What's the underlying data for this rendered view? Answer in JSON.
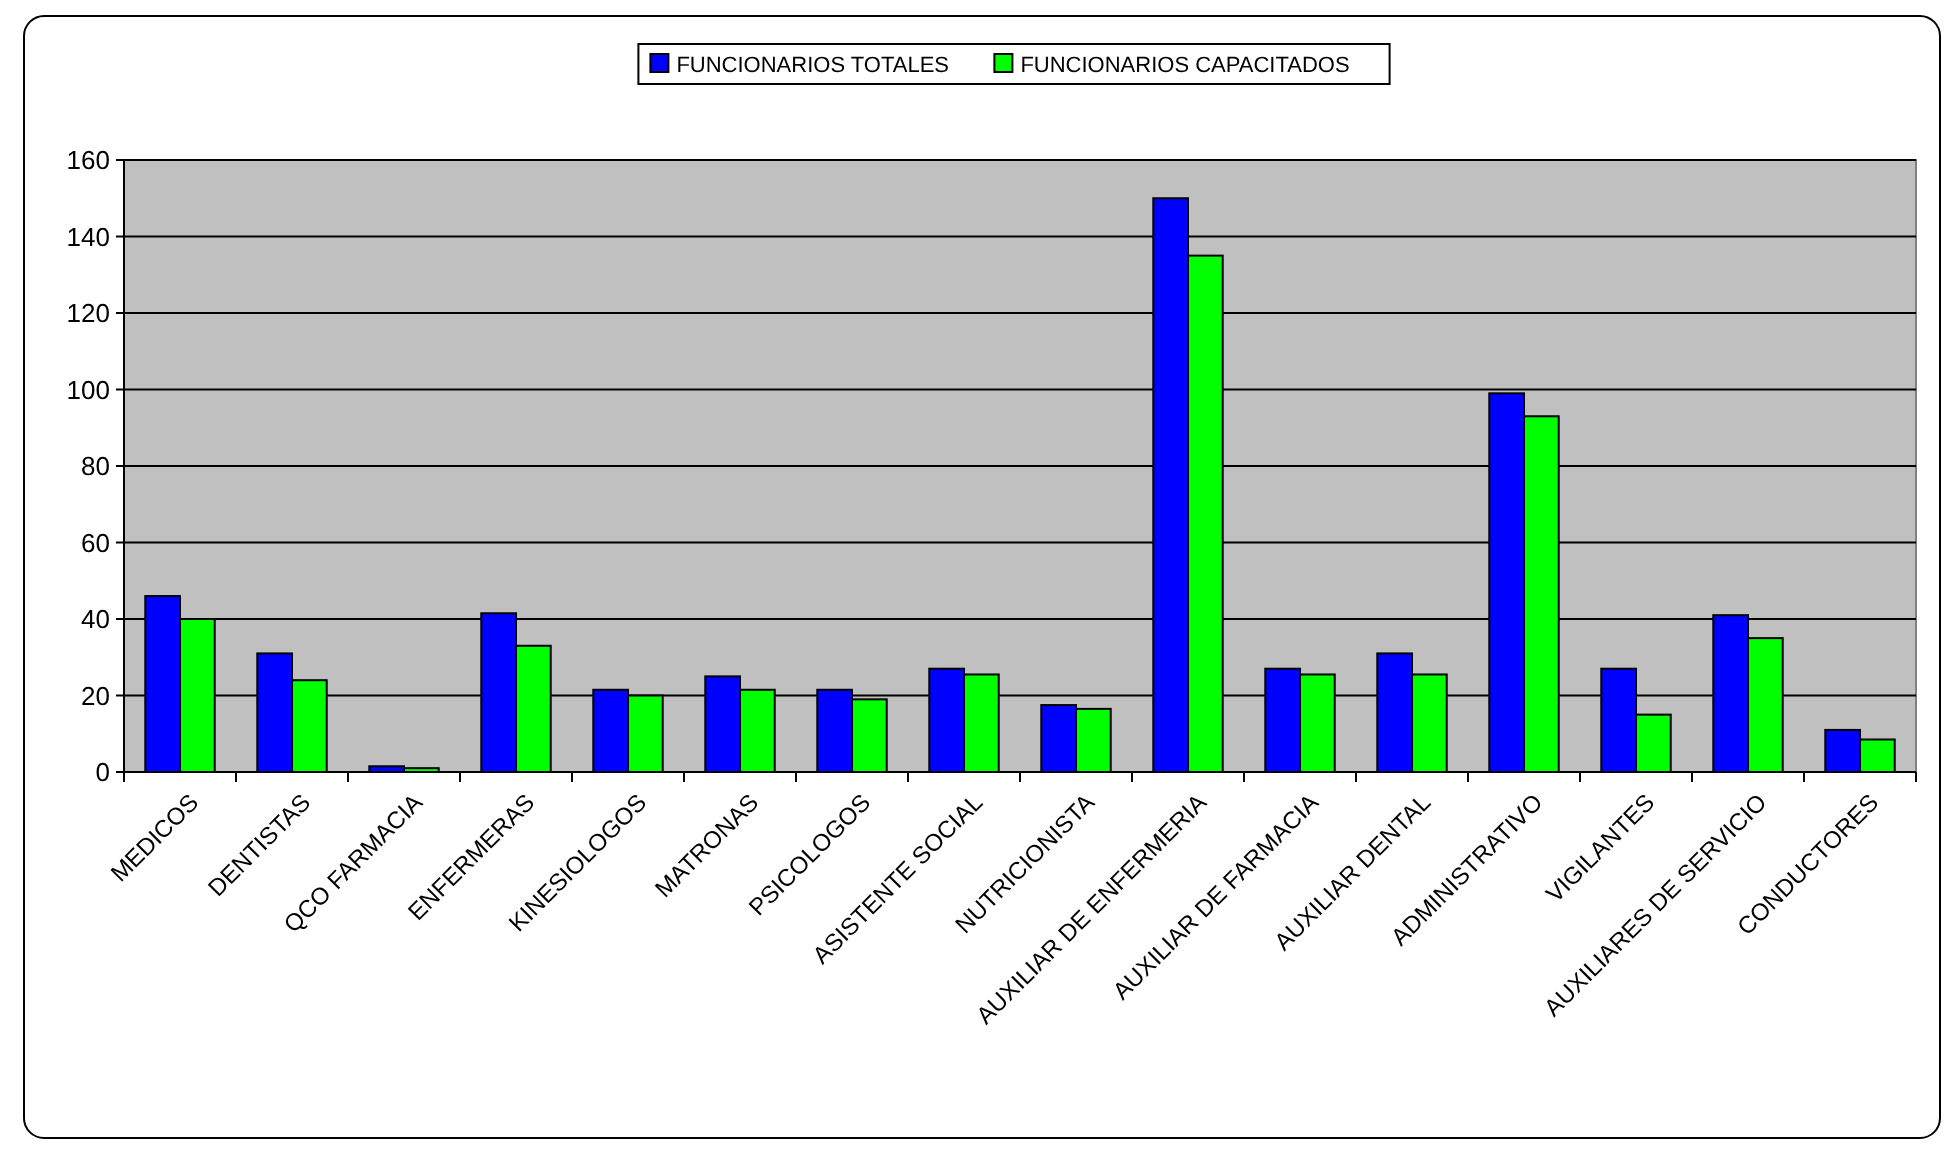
{
  "chart_data": {
    "type": "bar",
    "categories": [
      "MEDICOS",
      "DENTISTAS",
      "QCO FARMACIA",
      "ENFERMERAS",
      "KINESIOLOGOS",
      "MATRONAS",
      "PSICOLOGOS",
      "ASISTENTE SOCIAL",
      "NUTRICIONISTA",
      "AUXILIAR DE ENFERMERIA",
      "AUXILIAR DE FARMACIA",
      "AUXILIAR DENTAL",
      "ADMINISTRATIVO",
      "VIGILANTES",
      "AUXILIARES DE SERVICIO",
      "CONDUCTORES"
    ],
    "series": [
      {
        "name": "FUNCIONARIOS TOTALES",
        "color": "#0000ff",
        "values": [
          46,
          31,
          1.5,
          41.5,
          21.5,
          25,
          21.5,
          27,
          17.5,
          150,
          27,
          31,
          99,
          27,
          41,
          11
        ]
      },
      {
        "name": "FUNCIONARIOS CAPACITADOS",
        "color": "#00ff00",
        "values": [
          40,
          24,
          1,
          33,
          20,
          21.5,
          19,
          25.5,
          16.5,
          135,
          25.5,
          25.5,
          93,
          15,
          35,
          8.5
        ]
      }
    ],
    "ylim": [
      0,
      160
    ],
    "yticks": [
      0,
      20,
      40,
      60,
      80,
      100,
      120,
      140,
      160
    ],
    "grid": "y",
    "legend": "top"
  }
}
